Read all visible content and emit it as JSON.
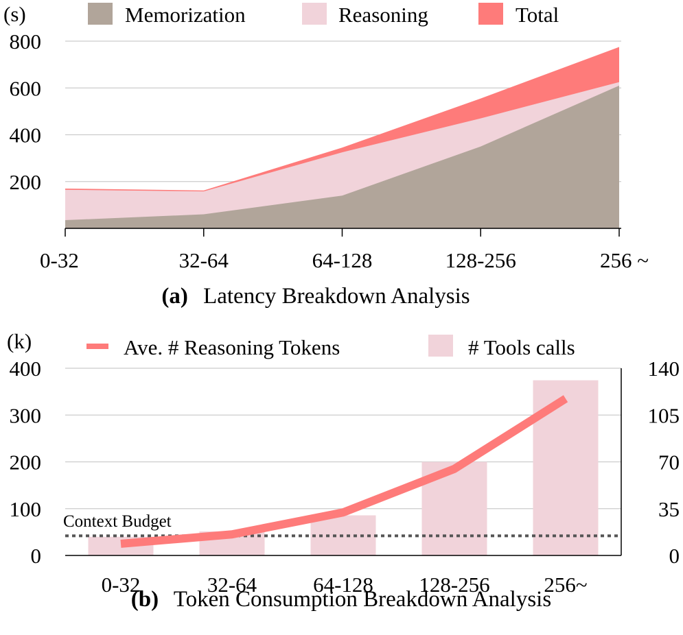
{
  "chart_data": [
    {
      "type": "area",
      "caption_label": "(a)",
      "caption_text": "Latency Breakdown Analysis",
      "ylabel": "(s)",
      "categories": [
        "0-32",
        "32-64",
        "64-128",
        "128-256",
        "256 ~"
      ],
      "yticks": [
        200,
        400,
        600,
        800
      ],
      "ylim": [
        0,
        800
      ],
      "grid": true,
      "legend": "top",
      "series": [
        {
          "name": "Memorization",
          "color": "#b1a59a",
          "values": [
            35,
            60,
            140,
            350,
            610
          ]
        },
        {
          "name": "Reasoning",
          "color": "#f1d3da",
          "values": [
            165,
            158,
            325,
            470,
            625
          ]
        },
        {
          "name": "Total",
          "color": "#fe7b7a",
          "values": [
            170,
            162,
            345,
            555,
            775
          ]
        }
      ]
    },
    {
      "type": "bar",
      "caption_label": "(b)",
      "caption_text": "Token Consumption Breakdown Analysis",
      "ylabel": "(k)",
      "categories": [
        "0-32",
        "32-64",
        "64-128",
        "128-256",
        "256~"
      ],
      "yticks_left": [
        0,
        100,
        200,
        300,
        400
      ],
      "yticks_right": [
        0,
        35,
        70,
        105,
        140
      ],
      "ylim_left": [
        0,
        400
      ],
      "ylim_right": [
        0,
        140
      ],
      "grid": true,
      "legend": "top",
      "line_series": {
        "name": "Ave. # Reasoning Tokens",
        "color": "#fe7b7a",
        "values": [
          25,
          45,
          92,
          185,
          335
        ]
      },
      "bar_series": {
        "name": "# Tools calls",
        "color": "#f1d3da",
        "values": [
          14,
          18,
          30,
          70,
          131
        ]
      },
      "budget": {
        "label": "Context Budget",
        "value": 42,
        "color": "#555555"
      }
    }
  ]
}
